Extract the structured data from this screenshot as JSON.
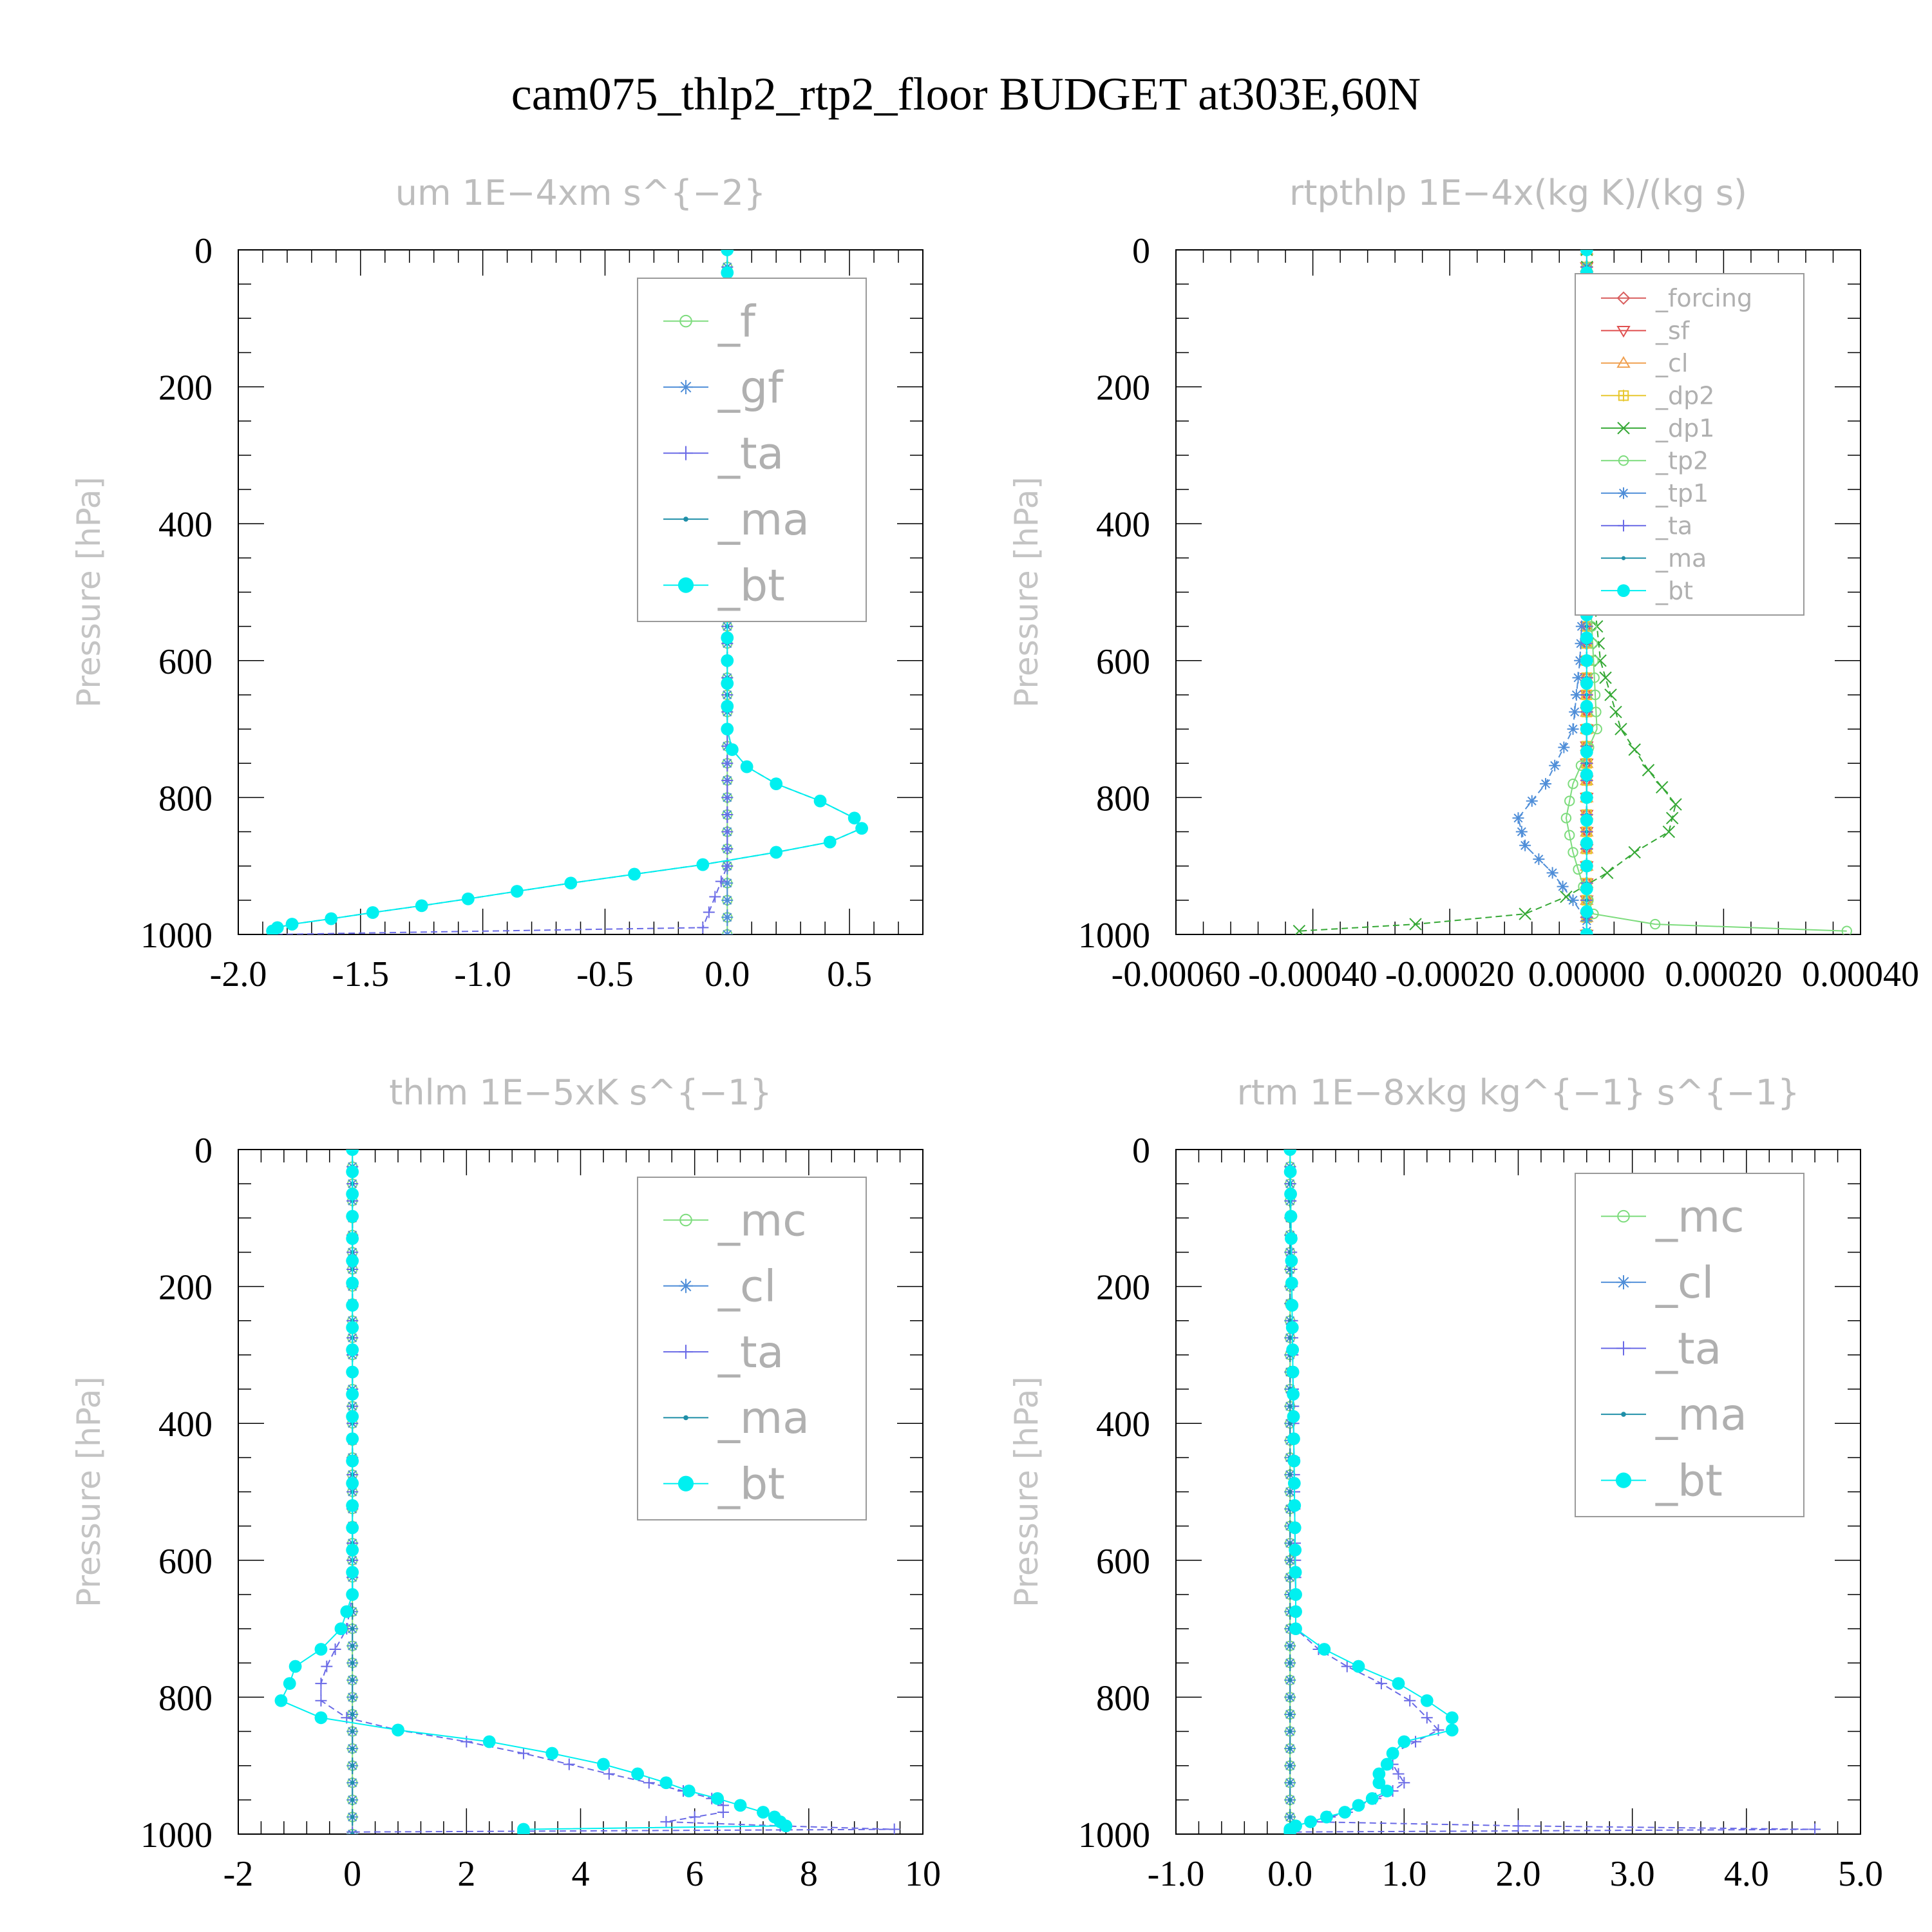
{
  "title": "cam075_thlp2_rtp2_floor  BUDGET at303E,60N",
  "colors": {
    "f": "#7ddc7d",
    "gf": "#4f8ed8",
    "ta": "#6a6ae6",
    "ma": "#1f8fa8",
    "bt": "#00f0f0",
    "mc": "#7ddc7d",
    "cl": "#4f8ed8",
    "forcing": "#d95f5f",
    "sf": "#e05050",
    "cl_orange": "#f0a050",
    "dp2": "#e8c830",
    "dp1": "#35a835",
    "tp2": "#7ddc7d",
    "tp1": "#4f8ed8"
  },
  "chart_data": [
    {
      "type": "line",
      "title": "um   1E−4xm  s^{−2}",
      "ylabel": "Pressure  [hPa]",
      "xlim": [
        -2.0,
        0.8
      ],
      "ylim": [
        1000,
        0
      ],
      "y_inverted": true,
      "xticks": [
        -2.0,
        -1.5,
        -1.0,
        -0.5,
        0.0,
        0.5
      ],
      "xtick_labels": [
        "-2.0",
        "-1.5",
        "-1.0",
        "-0.5",
        "0.0",
        "0.5"
      ],
      "yticks": [
        0,
        200,
        400,
        600,
        800,
        1000
      ],
      "ytick_labels": [
        "0",
        "200",
        "400",
        "600",
        "800",
        "1000"
      ],
      "legend_position": "top-right",
      "series": [
        {
          "name": "_f",
          "key": "f",
          "marker": "circle-open",
          "y": [
            0,
            1000
          ],
          "x": [
            0.0,
            0.0
          ]
        },
        {
          "name": "_gf",
          "key": "gf",
          "marker": "star",
          "y": [
            0,
            1000
          ],
          "x": [
            0.0,
            0.0
          ]
        },
        {
          "name": "_ta",
          "key": "ta",
          "marker": "plus",
          "y": [
            0,
            600,
            700,
            800,
            900,
            990,
            1000
          ],
          "x": [
            0.0,
            0.0,
            0.0,
            0.0,
            0.0,
            -0.1,
            -1.85
          ]
        },
        {
          "name": "_ma",
          "key": "ma",
          "marker": "dot",
          "y": [
            0,
            700,
            730,
            755,
            780,
            805,
            830,
            845,
            865,
            880,
            898,
            912,
            925,
            937,
            948,
            958,
            968,
            977,
            985,
            990,
            995
          ],
          "x": [
            0.0,
            0.0,
            0.02,
            0.08,
            0.2,
            0.38,
            0.52,
            0.55,
            0.42,
            0.2,
            -0.1,
            -0.38,
            -0.64,
            -0.86,
            -1.06,
            -1.25,
            -1.45,
            -1.62,
            -1.78,
            -1.84,
            -1.86
          ]
        },
        {
          "name": "_bt",
          "key": "bt",
          "marker": "dot-filled",
          "y": [
            0,
            700,
            730,
            755,
            780,
            805,
            830,
            845,
            865,
            880,
            898,
            912,
            925,
            937,
            948,
            958,
            968,
            977,
            985,
            990,
            995
          ],
          "x": [
            0.0,
            0.0,
            0.02,
            0.08,
            0.2,
            0.38,
            0.52,
            0.55,
            0.42,
            0.2,
            -0.1,
            -0.38,
            -0.64,
            -0.86,
            -1.06,
            -1.25,
            -1.45,
            -1.62,
            -1.78,
            -1.84,
            -1.86
          ]
        }
      ]
    },
    {
      "type": "line",
      "title": "rtpthlp   1E−4x(kg K)/(kg s)",
      "ylabel": "Pressure  [hPa]",
      "xlim": [
        -0.0006,
        0.0004
      ],
      "ylim": [
        1000,
        0
      ],
      "y_inverted": true,
      "xticks": [
        -0.0006,
        -0.0004,
        -0.0002,
        0.0,
        0.0002,
        0.0004
      ],
      "xtick_labels": [
        "-0.00060",
        "-0.00040",
        "-0.00020",
        "0.00000",
        "0.00020",
        "0.00040"
      ],
      "yticks": [
        0,
        200,
        400,
        600,
        800,
        1000
      ],
      "ytick_labels": [
        "0",
        "200",
        "400",
        "600",
        "800",
        "1000"
      ],
      "legend_position": "top-right",
      "series": [
        {
          "name": "_forcing",
          "key": "forcing",
          "marker": "diamond",
          "y": [
            0,
            1000
          ],
          "x": [
            0.0,
            0.0
          ]
        },
        {
          "name": "_sf",
          "key": "sf",
          "marker": "triangle-down",
          "y": [
            0,
            1000
          ],
          "x": [
            0.0,
            0.0
          ]
        },
        {
          "name": "_cl",
          "key": "cl_orange",
          "marker": "triangle-up",
          "y": [
            0,
            1000
          ],
          "x": [
            0.0,
            0.0
          ]
        },
        {
          "name": "_dp2",
          "key": "dp2",
          "marker": "square-plus",
          "y": [
            0,
            1000
          ],
          "x": [
            0.0,
            0.0
          ]
        },
        {
          "name": "_dp1",
          "key": "dp1",
          "marker": "x",
          "y": [
            0,
            500,
            600,
            700,
            760,
            810,
            850,
            880,
            910,
            945,
            970,
            985,
            995
          ],
          "x": [
            0.0,
            1e-05,
            2e-05,
            5e-05,
            9e-05,
            0.00013,
            0.00012,
            7e-05,
            3e-05,
            -3e-05,
            -9e-05,
            -0.00025,
            -0.00042
          ]
        },
        {
          "name": "_tp2",
          "key": "tp2",
          "marker": "circle-open",
          "y": [
            0,
            500,
            600,
            700,
            780,
            830,
            880,
            930,
            970,
            985,
            995
          ],
          "x": [
            0.0,
            5e-06,
            1e-05,
            1.5e-05,
            -2e-05,
            -3e-05,
            -2e-05,
            -5e-06,
            1e-05,
            0.0001,
            0.00038
          ]
        },
        {
          "name": "_tp1",
          "key": "tp1",
          "marker": "star",
          "y": [
            0,
            500,
            600,
            700,
            780,
            830,
            870,
            910,
            950,
            980,
            995
          ],
          "x": [
            0.0,
            -5e-06,
            -1e-05,
            -2e-05,
            -6e-05,
            -0.0001,
            -9e-05,
            -5e-05,
            -2e-05,
            0.0,
            0.0
          ]
        },
        {
          "name": "_ta",
          "key": "ta",
          "marker": "plus",
          "y": [
            0,
            1000
          ],
          "x": [
            0.0,
            0.0
          ]
        },
        {
          "name": "_ma",
          "key": "ma",
          "marker": "dot",
          "y": [
            0,
            1000
          ],
          "x": [
            0.0,
            0.0
          ]
        },
        {
          "name": "_bt",
          "key": "bt",
          "marker": "dot-filled",
          "y": [
            0,
            1000
          ],
          "x": [
            0.0,
            0.0
          ]
        }
      ]
    },
    {
      "type": "line",
      "title": "thlm   1E−5xK  s^{−1}",
      "ylabel": "Pressure  [hPa]",
      "xlim": [
        -2,
        10
      ],
      "ylim": [
        1000,
        0
      ],
      "y_inverted": true,
      "xticks": [
        -2,
        0,
        2,
        4,
        6,
        8,
        10
      ],
      "xtick_labels": [
        "-2",
        "0",
        "2",
        "4",
        "6",
        "8",
        "10"
      ],
      "yticks": [
        0,
        200,
        400,
        600,
        800,
        1000
      ],
      "ytick_labels": [
        "0",
        "200",
        "400",
        "600",
        "800",
        "1000"
      ],
      "legend_position": "top-right",
      "series": [
        {
          "name": "_mc",
          "key": "mc",
          "marker": "circle-open",
          "y": [
            0,
            1000
          ],
          "x": [
            0.0,
            0.0
          ]
        },
        {
          "name": "_cl",
          "key": "cl",
          "marker": "star",
          "y": [
            0,
            1000
          ],
          "x": [
            0.0,
            0.0
          ]
        },
        {
          "name": "_ta",
          "key": "ta",
          "marker": "plus",
          "y": [
            0,
            650,
            700,
            730,
            755,
            780,
            805,
            830,
            848,
            865,
            882,
            898,
            912,
            925,
            937,
            948,
            958,
            968,
            975,
            982,
            988,
            993,
            997
          ],
          "x": [
            0.0,
            0.0,
            -0.1,
            -0.3,
            -0.45,
            -0.55,
            -0.55,
            -0.1,
            0.8,
            2.0,
            3.0,
            3.8,
            4.5,
            5.2,
            5.8,
            6.3,
            6.5,
            6.5,
            6.0,
            5.5,
            7.5,
            9.5,
            0.0
          ]
        },
        {
          "name": "_ma",
          "key": "ma",
          "marker": "dot",
          "y": [
            0,
            1000
          ],
          "x": [
            0.0,
            0.0
          ]
        },
        {
          "name": "_bt",
          "key": "bt",
          "marker": "dot-filled",
          "y": [
            0,
            650,
            700,
            730,
            755,
            780,
            805,
            830,
            848,
            865,
            882,
            898,
            912,
            925,
            937,
            948,
            958,
            968,
            975,
            982,
            988,
            993,
            997
          ],
          "x": [
            0.0,
            0.0,
            -0.2,
            -0.55,
            -1.0,
            -1.1,
            -1.25,
            -0.55,
            0.8,
            2.4,
            3.5,
            4.4,
            5.0,
            5.5,
            5.9,
            6.4,
            6.8,
            7.2,
            7.4,
            7.5,
            7.6,
            3.0,
            3.0
          ]
        }
      ]
    },
    {
      "type": "line",
      "title": "rtm   1E−8xkg  kg^{−1}  s^{−1}",
      "ylabel": "Pressure  [hPa]",
      "xlim": [
        -1.0,
        5.0
      ],
      "ylim": [
        1000,
        0
      ],
      "y_inverted": true,
      "xticks": [
        -1.0,
        0.0,
        1.0,
        2.0,
        3.0,
        4.0,
        5.0
      ],
      "xtick_labels": [
        "-1.0",
        "0.0",
        "1.0",
        "2.0",
        "3.0",
        "4.0",
        "5.0"
      ],
      "yticks": [
        0,
        200,
        400,
        600,
        800,
        1000
      ],
      "ytick_labels": [
        "0",
        "200",
        "400",
        "600",
        "800",
        "1000"
      ],
      "legend_position": "top-right",
      "series": [
        {
          "name": "_mc",
          "key": "mc",
          "marker": "circle-open",
          "y": [
            0,
            1000
          ],
          "x": [
            0.0,
            0.0
          ]
        },
        {
          "name": "_cl",
          "key": "cl",
          "marker": "star",
          "y": [
            0,
            1000
          ],
          "x": [
            0.0,
            0.0
          ]
        },
        {
          "name": "_ta",
          "key": "ta",
          "marker": "plus",
          "y": [
            0,
            650,
            700,
            730,
            755,
            780,
            805,
            830,
            848,
            865,
            882,
            898,
            912,
            925,
            937,
            948,
            958,
            968,
            975,
            982,
            988,
            993,
            997
          ],
          "x": [
            0.0,
            0.05,
            0.05,
            0.25,
            0.5,
            0.8,
            1.05,
            1.2,
            1.3,
            1.1,
            0.9,
            0.9,
            0.95,
            1.0,
            0.9,
            0.75,
            0.6,
            0.5,
            0.35,
            0.2,
            2.0,
            4.6,
            0.0
          ]
        },
        {
          "name": "_ma",
          "key": "ma",
          "marker": "dot",
          "y": [
            0,
            1000
          ],
          "x": [
            0.0,
            0.0
          ]
        },
        {
          "name": "_bt",
          "key": "bt",
          "marker": "dot-filled",
          "y": [
            0,
            650,
            700,
            730,
            755,
            780,
            805,
            830,
            848,
            865,
            882,
            898,
            912,
            925,
            937,
            948,
            958,
            968,
            975,
            982,
            988,
            993,
            997
          ],
          "x": [
            0.0,
            0.05,
            0.05,
            0.3,
            0.6,
            0.95,
            1.2,
            1.42,
            1.42,
            1.0,
            0.9,
            0.85,
            0.78,
            0.78,
            0.85,
            0.72,
            0.6,
            0.48,
            0.32,
            0.18,
            0.05,
            0.0,
            0.0
          ]
        }
      ]
    }
  ]
}
